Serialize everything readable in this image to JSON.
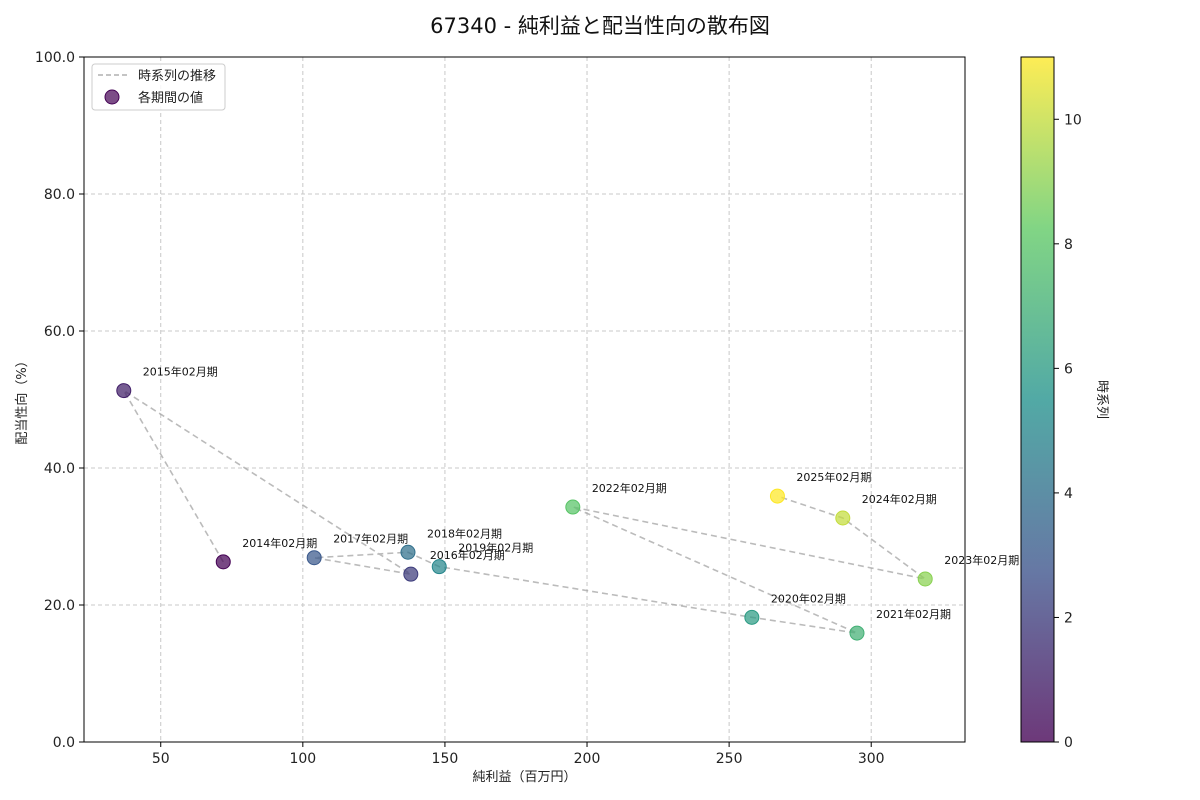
{
  "chart_data": {
    "type": "scatter",
    "title": "67340 - 純利益と配当性向の散布図",
    "xlabel": "純利益（百万円）",
    "ylabel": "配当性向（%）",
    "xlim": [
      23,
      333
    ],
    "ylim": [
      0,
      100
    ],
    "x_ticks": [
      50,
      100,
      150,
      200,
      250,
      300
    ],
    "x_tick_labels": [
      "50",
      "100",
      "150",
      "200",
      "250",
      "300"
    ],
    "y_ticks": [
      0,
      20,
      40,
      60,
      80,
      100
    ],
    "y_tick_labels": [
      "0.0",
      "20.0",
      "40.0",
      "60.0",
      "80.0",
      "100.0"
    ],
    "grid": true,
    "legend": {
      "position": "top-left",
      "line_label": "時系列の推移",
      "point_label": "各期間の値"
    },
    "colorbar": {
      "label": "時系列",
      "range": [
        0,
        11
      ],
      "ticks": [
        0,
        2,
        4,
        6,
        8,
        10
      ],
      "tick_labels": [
        "0",
        "2",
        "4",
        "6",
        "8",
        "10"
      ],
      "colormap": "viridis"
    },
    "points": [
      {
        "label": "2014年02月期",
        "x": 72,
        "y": 26.3,
        "t": 0
      },
      {
        "label": "2015年02月期",
        "x": 37,
        "y": 51.3,
        "t": 1
      },
      {
        "label": "2016年02月期",
        "x": 138,
        "y": 24.5,
        "t": 2
      },
      {
        "label": "2017年02月期",
        "x": 104,
        "y": 26.9,
        "t": 3
      },
      {
        "label": "2018年02月期",
        "x": 137,
        "y": 27.7,
        "t": 4
      },
      {
        "label": "2019年02月期",
        "x": 148,
        "y": 25.6,
        "t": 5
      },
      {
        "label": "2020年02月期",
        "x": 258,
        "y": 18.2,
        "t": 6
      },
      {
        "label": "2021年02月期",
        "x": 295,
        "y": 15.9,
        "t": 7
      },
      {
        "label": "2022年02月期",
        "x": 195,
        "y": 34.3,
        "t": 8
      },
      {
        "label": "2023年02月期",
        "x": 319,
        "y": 23.8,
        "t": 9
      },
      {
        "label": "2024年02月期",
        "x": 290,
        "y": 32.7,
        "t": 10
      },
      {
        "label": "2025年02月期",
        "x": 267,
        "y": 35.9,
        "t": 11
      }
    ]
  }
}
